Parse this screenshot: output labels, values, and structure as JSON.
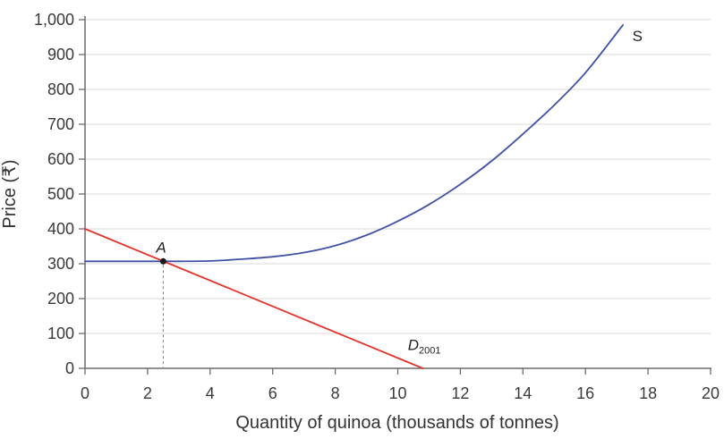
{
  "chart_data": {
    "type": "line",
    "title": "",
    "xlabel": "Quantity of quinoa (thousands of tonnes)",
    "ylabel": "Price (₹)",
    "xlim": [
      0,
      20
    ],
    "ylim": [
      0,
      1000
    ],
    "grid": "horizontal-only",
    "legend_position": "none",
    "xticks": [
      {
        "v": 0,
        "label": "0"
      },
      {
        "v": 2,
        "label": "2"
      },
      {
        "v": 4,
        "label": "4"
      },
      {
        "v": 6,
        "label": "6"
      },
      {
        "v": 8,
        "label": "8"
      },
      {
        "v": 10,
        "label": "10"
      },
      {
        "v": 12,
        "label": "12"
      },
      {
        "v": 14,
        "label": "14"
      },
      {
        "v": 16,
        "label": "16"
      },
      {
        "v": 18,
        "label": "18"
      },
      {
        "v": 20,
        "label": "20"
      }
    ],
    "yticks": [
      {
        "v": 0,
        "label": "0"
      },
      {
        "v": 100,
        "label": "100"
      },
      {
        "v": 200,
        "label": "200"
      },
      {
        "v": 300,
        "label": "300"
      },
      {
        "v": 400,
        "label": "400"
      },
      {
        "v": 500,
        "label": "500"
      },
      {
        "v": 600,
        "label": "600"
      },
      {
        "v": 700,
        "label": "700"
      },
      {
        "v": 800,
        "label": "800"
      },
      {
        "v": 900,
        "label": "900"
      },
      {
        "v": 1000,
        "label": "1,000"
      }
    ],
    "series": [
      {
        "name": "supply",
        "label_text": "S",
        "label_italic": false,
        "label_at": {
          "x": 17.5,
          "y": 938
        },
        "color": "#3f51a5",
        "smooth": true,
        "points": [
          [
            0,
            307
          ],
          [
            1,
            307
          ],
          [
            2,
            307
          ],
          [
            3,
            307
          ],
          [
            4,
            308
          ],
          [
            5,
            313
          ],
          [
            6,
            320
          ],
          [
            7,
            332
          ],
          [
            8,
            352
          ],
          [
            9,
            382
          ],
          [
            10,
            422
          ],
          [
            11,
            470
          ],
          [
            12,
            528
          ],
          [
            13,
            595
          ],
          [
            14,
            672
          ],
          [
            15,
            755
          ],
          [
            16,
            848
          ],
          [
            17.2,
            985
          ]
        ]
      },
      {
        "name": "demand-2001",
        "label_text": "D",
        "label_sub": "2001",
        "label_italic": true,
        "label_at": {
          "x": 10.32,
          "y": 52
        },
        "color": "#e0352b",
        "smooth": false,
        "points": [
          [
            0,
            400
          ],
          [
            10.8,
            0
          ]
        ]
      }
    ],
    "annotations": {
      "equilibrium_point": {
        "label": "A",
        "x": 2.5,
        "y": 307,
        "dropline_to_x_axis": true
      }
    }
  },
  "colors": {
    "background": "#ffffff",
    "axis": "#6b6b6b",
    "grid": "#d9d9d9",
    "tick_text": "#3a3a3a",
    "title_text": "#333333",
    "point": "#1a1a1a",
    "dropline": "#8f8f8f",
    "supply": "#3f51a5",
    "demand": "#e0352b"
  }
}
